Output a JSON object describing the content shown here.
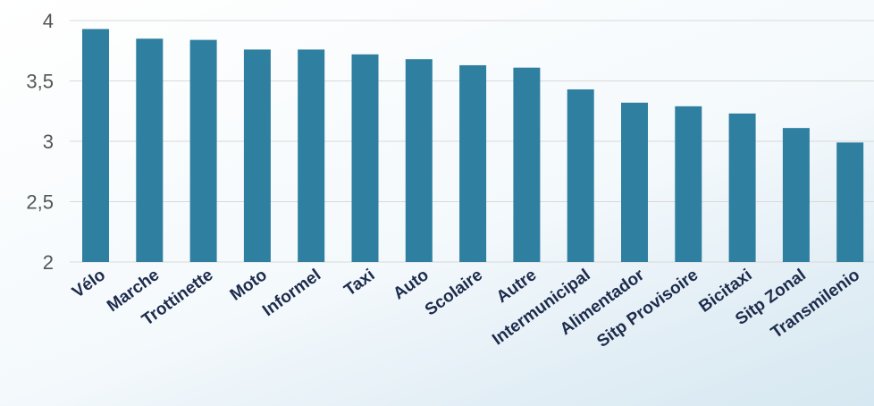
{
  "chart_data": {
    "type": "bar",
    "categories": [
      "Vélo",
      "Marche",
      "Trottinette",
      "Moto",
      "Informel",
      "Taxi",
      "Auto",
      "Scolaire",
      "Autre",
      "Intermunicipal",
      "Alimentador",
      "Sitp Provisoire",
      "Bicitaxi",
      "Sitp Zonal",
      "Transmilenio"
    ],
    "values": [
      3.93,
      3.85,
      3.84,
      3.76,
      3.76,
      3.72,
      3.68,
      3.63,
      3.61,
      3.43,
      3.32,
      3.29,
      3.23,
      3.11,
      2.99
    ],
    "title": "",
    "xlabel": "",
    "ylabel": "",
    "ylim": [
      2,
      4
    ],
    "yticks": [
      2,
      2.5,
      3,
      3.5,
      4
    ],
    "ytick_labels": [
      "2",
      "2,5",
      "3",
      "3,5",
      "4"
    ],
    "grid": true,
    "legend": "none",
    "bar_color": "#2e7fa0"
  }
}
